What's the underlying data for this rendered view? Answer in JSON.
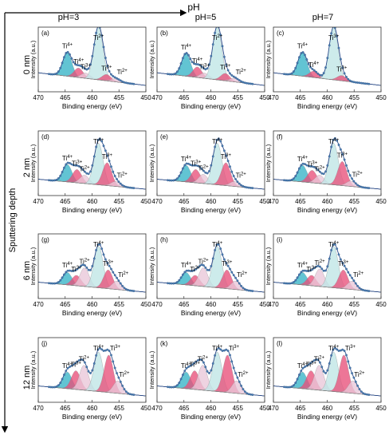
{
  "figure": {
    "top_axis_label": "pH",
    "side_axis_label": "Sputtering depth",
    "columns": [
      "pH=3",
      "pH=5",
      "pH=7"
    ],
    "rows": [
      "0 nm",
      "2 nm",
      "6 nm",
      "12 nm"
    ]
  },
  "colors": {
    "data_points": "#4a7fb5",
    "ti4_fill": "#36b3c7",
    "ti4_main_fill": "#bfe6e6",
    "ti3_fill": "#e8507a",
    "ti2_fill": "#e9c6d8",
    "envelope": "#2b4c8c",
    "axis": "#333333"
  },
  "chart_data": [
    {
      "type": "line",
      "panel": "(a)",
      "xlabel": "Binding energy (eV)",
      "ylabel": "Intensity (a.u.)",
      "xlim": [
        470,
        450
      ],
      "xticks": [
        470,
        465,
        460,
        455,
        450
      ],
      "annotations": [
        "Ti4+",
        "Ti4+",
        "Ti3+",
        "Ti2+",
        "Ti3+",
        "Ti2+"
      ],
      "peaks": [
        {
          "name": "Ti4+",
          "center": 464.6,
          "height": 0.45
        },
        {
          "name": "Ti3+",
          "center": 462.5,
          "height": 0.18
        },
        {
          "name": "Ti2+",
          "center": 461.2,
          "height": 0.1
        },
        {
          "name": "Ti4+",
          "center": 458.8,
          "height": 1.0
        },
        {
          "name": "Ti3+",
          "center": 457.3,
          "height": 0.12
        },
        {
          "name": "Ti2+",
          "center": 455.6,
          "height": 0.06
        }
      ]
    },
    {
      "type": "line",
      "panel": "(b)",
      "xlabel": "Binding energy (eV)",
      "ylabel": "Intensity (a.u.)",
      "xlim": [
        470,
        450
      ],
      "xticks": [
        470,
        465,
        460,
        455,
        450
      ],
      "annotations": [
        "Ti4+",
        "Ti4+",
        "Ti3+",
        "Ti2+",
        "Ti3+",
        "Ti2+"
      ],
      "peaks": [
        {
          "name": "Ti4+",
          "center": 464.6,
          "height": 0.43
        },
        {
          "name": "Ti3+",
          "center": 462.5,
          "height": 0.2
        },
        {
          "name": "Ti2+",
          "center": 461.2,
          "height": 0.1
        },
        {
          "name": "Ti4+",
          "center": 458.8,
          "height": 1.0
        },
        {
          "name": "Ti3+",
          "center": 457.3,
          "height": 0.14
        },
        {
          "name": "Ti2+",
          "center": 455.6,
          "height": 0.07
        }
      ]
    },
    {
      "type": "line",
      "panel": "(c)",
      "xlabel": "Binding energy (eV)",
      "ylabel": "Intensity (a.u.)",
      "xlim": [
        470,
        450
      ],
      "xticks": [
        470,
        465,
        460,
        455,
        450
      ],
      "annotations": [
        "Ti4+",
        "Ti4+",
        "Ti3+",
        "Ti3+"
      ],
      "peaks": [
        {
          "name": "Ti4+",
          "center": 464.6,
          "height": 0.45
        },
        {
          "name": "Ti3+",
          "center": 462.5,
          "height": 0.12
        },
        {
          "name": "Ti4+",
          "center": 458.8,
          "height": 1.0
        },
        {
          "name": "Ti3+",
          "center": 457.3,
          "height": 0.1
        }
      ]
    },
    {
      "type": "line",
      "panel": "(d)",
      "xlabel": "Binding energy (eV)",
      "ylabel": "Intensity (a.u.)",
      "xlim": [
        470,
        450
      ],
      "xticks": [
        470,
        465,
        460,
        455,
        450
      ],
      "annotations": [
        "Ti4+",
        "Ti3+",
        "Ti2+",
        "Ti4+",
        "Ti3+",
        "Ti2+"
      ],
      "peaks": [
        {
          "name": "Ti4+",
          "center": 464.6,
          "height": 0.42
        },
        {
          "name": "Ti3+",
          "center": 462.8,
          "height": 0.32
        },
        {
          "name": "Ti2+",
          "center": 461.4,
          "height": 0.2
        },
        {
          "name": "Ti4+",
          "center": 458.8,
          "height": 1.0
        },
        {
          "name": "Ti3+",
          "center": 457.2,
          "height": 0.55
        },
        {
          "name": "Ti2+",
          "center": 455.6,
          "height": 0.12
        }
      ]
    },
    {
      "type": "line",
      "panel": "(e)",
      "xlabel": "Binding energy (eV)",
      "ylabel": "Intensity (a.u.)",
      "xlim": [
        470,
        450
      ],
      "xticks": [
        470,
        465,
        460,
        455,
        450
      ],
      "annotations": [
        "Ti4+",
        "Ti3+",
        "Ti2+",
        "Ti4+",
        "Ti3+",
        "Ti2+"
      ],
      "peaks": [
        {
          "name": "Ti4+",
          "center": 464.6,
          "height": 0.4
        },
        {
          "name": "Ti3+",
          "center": 462.8,
          "height": 0.32
        },
        {
          "name": "Ti2+",
          "center": 461.4,
          "height": 0.22
        },
        {
          "name": "Ti4+",
          "center": 458.8,
          "height": 1.0
        },
        {
          "name": "Ti3+",
          "center": 457.2,
          "height": 0.55
        },
        {
          "name": "Ti2+",
          "center": 455.6,
          "height": 0.12
        }
      ]
    },
    {
      "type": "line",
      "panel": "(f)",
      "xlabel": "Binding energy (eV)",
      "ylabel": "Intensity (a.u.)",
      "xlim": [
        470,
        450
      ],
      "xticks": [
        470,
        465,
        460,
        455,
        450
      ],
      "annotations": [
        "Ti4+",
        "Ti3+",
        "Ti2+",
        "Ti4+",
        "Ti3+",
        "Ti2+"
      ],
      "peaks": [
        {
          "name": "Ti4+",
          "center": 464.6,
          "height": 0.4
        },
        {
          "name": "Ti3+",
          "center": 462.8,
          "height": 0.3
        },
        {
          "name": "Ti2+",
          "center": 461.4,
          "height": 0.2
        },
        {
          "name": "Ti4+",
          "center": 458.8,
          "height": 1.0
        },
        {
          "name": "Ti3+",
          "center": 457.2,
          "height": 0.58
        },
        {
          "name": "Ti2+",
          "center": 455.6,
          "height": 0.13
        }
      ]
    },
    {
      "type": "line",
      "panel": "(g)",
      "xlabel": "Binding energy (eV)",
      "ylabel": "Intensity (a.u.)",
      "xlim": [
        470,
        450
      ],
      "xticks": [
        470,
        465,
        460,
        455,
        450
      ],
      "annotations": [
        "Ti4+",
        "Ti3+",
        "Ti2+",
        "Ti4+",
        "Ti3+",
        "Ti2+"
      ],
      "peaks": [
        {
          "name": "Ti4+",
          "center": 464.6,
          "height": 0.3
        },
        {
          "name": "Ti3+",
          "center": 462.9,
          "height": 0.25
        },
        {
          "name": "Ti2+",
          "center": 461.4,
          "height": 0.45
        },
        {
          "name": "Ti4+",
          "center": 458.8,
          "height": 1.0
        },
        {
          "name": "Ti3+",
          "center": 457.0,
          "height": 0.45
        },
        {
          "name": "Ti2+",
          "center": 455.4,
          "height": 0.2
        }
      ]
    },
    {
      "type": "line",
      "panel": "(h)",
      "xlabel": "Binding energy (eV)",
      "ylabel": "Intensity (a.u.)",
      "xlim": [
        470,
        450
      ],
      "xticks": [
        470,
        465,
        460,
        455,
        450
      ],
      "annotations": [
        "Ti4+",
        "Ti3+",
        "Ti2+",
        "Ti4+",
        "Ti3+",
        "Ti2+"
      ],
      "peaks": [
        {
          "name": "Ti4+",
          "center": 464.6,
          "height": 0.3
        },
        {
          "name": "Ti3+",
          "center": 462.9,
          "height": 0.25
        },
        {
          "name": "Ti2+",
          "center": 461.4,
          "height": 0.45
        },
        {
          "name": "Ti4+",
          "center": 458.8,
          "height": 1.0
        },
        {
          "name": "Ti3+",
          "center": 457.0,
          "height": 0.45
        },
        {
          "name": "Ti2+",
          "center": 455.4,
          "height": 0.2
        }
      ]
    },
    {
      "type": "line",
      "panel": "(i)",
      "xlabel": "Binding energy (eV)",
      "ylabel": "Intensity (a.u.)",
      "xlim": [
        470,
        450
      ],
      "xticks": [
        470,
        465,
        460,
        455,
        450
      ],
      "annotations": [
        "Ti4+",
        "Ti3+",
        "Ti2+",
        "Ti4+",
        "Ti3+",
        "Ti2+"
      ],
      "peaks": [
        {
          "name": "Ti4+",
          "center": 464.6,
          "height": 0.3
        },
        {
          "name": "Ti3+",
          "center": 462.9,
          "height": 0.25
        },
        {
          "name": "Ti2+",
          "center": 461.4,
          "height": 0.42
        },
        {
          "name": "Ti4+",
          "center": 458.8,
          "height": 1.0
        },
        {
          "name": "Ti3+",
          "center": 457.0,
          "height": 0.45
        },
        {
          "name": "Ti2+",
          "center": 455.4,
          "height": 0.2
        }
      ]
    },
    {
      "type": "line",
      "panel": "(j)",
      "xlabel": "Binding energy (eV)",
      "ylabel": "Intensity (a.u.)",
      "xlim": [
        470,
        450
      ],
      "xticks": [
        470,
        465,
        460,
        455,
        450
      ],
      "annotations": [
        "Ti4+",
        "Ti3+",
        "Ti2+",
        "Ti4+",
        "Ti3+",
        "Ti2+"
      ],
      "peaks": [
        {
          "name": "Ti4+",
          "center": 464.6,
          "height": 0.4
        },
        {
          "name": "Ti3+",
          "center": 463.0,
          "height": 0.45
        },
        {
          "name": "Ti2+",
          "center": 461.5,
          "height": 0.6
        },
        {
          "name": "Ti4+",
          "center": 458.8,
          "height": 0.95
        },
        {
          "name": "Ti3+",
          "center": 456.9,
          "height": 0.9
        },
        {
          "name": "Ti2+",
          "center": 455.2,
          "height": 0.3
        }
      ]
    },
    {
      "type": "line",
      "panel": "(k)",
      "xlabel": "Binding energy (eV)",
      "ylabel": "Intensity (a.u.)",
      "xlim": [
        470,
        450
      ],
      "xticks": [
        470,
        465,
        460,
        455,
        450
      ],
      "annotations": [
        "Ti4+",
        "Ti3+",
        "Ti2+",
        "Ti4+",
        "Ti3+",
        "Ti2+"
      ],
      "peaks": [
        {
          "name": "Ti4+",
          "center": 464.6,
          "height": 0.4
        },
        {
          "name": "Ti3+",
          "center": 463.0,
          "height": 0.45
        },
        {
          "name": "Ti2+",
          "center": 461.5,
          "height": 0.6
        },
        {
          "name": "Ti4+",
          "center": 458.8,
          "height": 0.95
        },
        {
          "name": "Ti3+",
          "center": 456.9,
          "height": 0.9
        },
        {
          "name": "Ti2+",
          "center": 455.2,
          "height": 0.3
        }
      ]
    },
    {
      "type": "line",
      "panel": "(l)",
      "xlabel": "Binding energy (eV)",
      "ylabel": "Intensity (a.u.)",
      "xlim": [
        470,
        450
      ],
      "xticks": [
        470,
        465,
        460,
        455,
        450
      ],
      "annotations": [
        "Ti4+",
        "Ti3+",
        "Ti2+",
        "Ti4+",
        "Ti3+",
        "Ti2+"
      ],
      "peaks": [
        {
          "name": "Ti4+",
          "center": 464.6,
          "height": 0.4
        },
        {
          "name": "Ti3+",
          "center": 463.0,
          "height": 0.45
        },
        {
          "name": "Ti2+",
          "center": 461.5,
          "height": 0.6
        },
        {
          "name": "Ti4+",
          "center": 458.8,
          "height": 0.95
        },
        {
          "name": "Ti3+",
          "center": 456.9,
          "height": 0.9
        },
        {
          "name": "Ti2+",
          "center": 455.2,
          "height": 0.3
        }
      ]
    }
  ]
}
